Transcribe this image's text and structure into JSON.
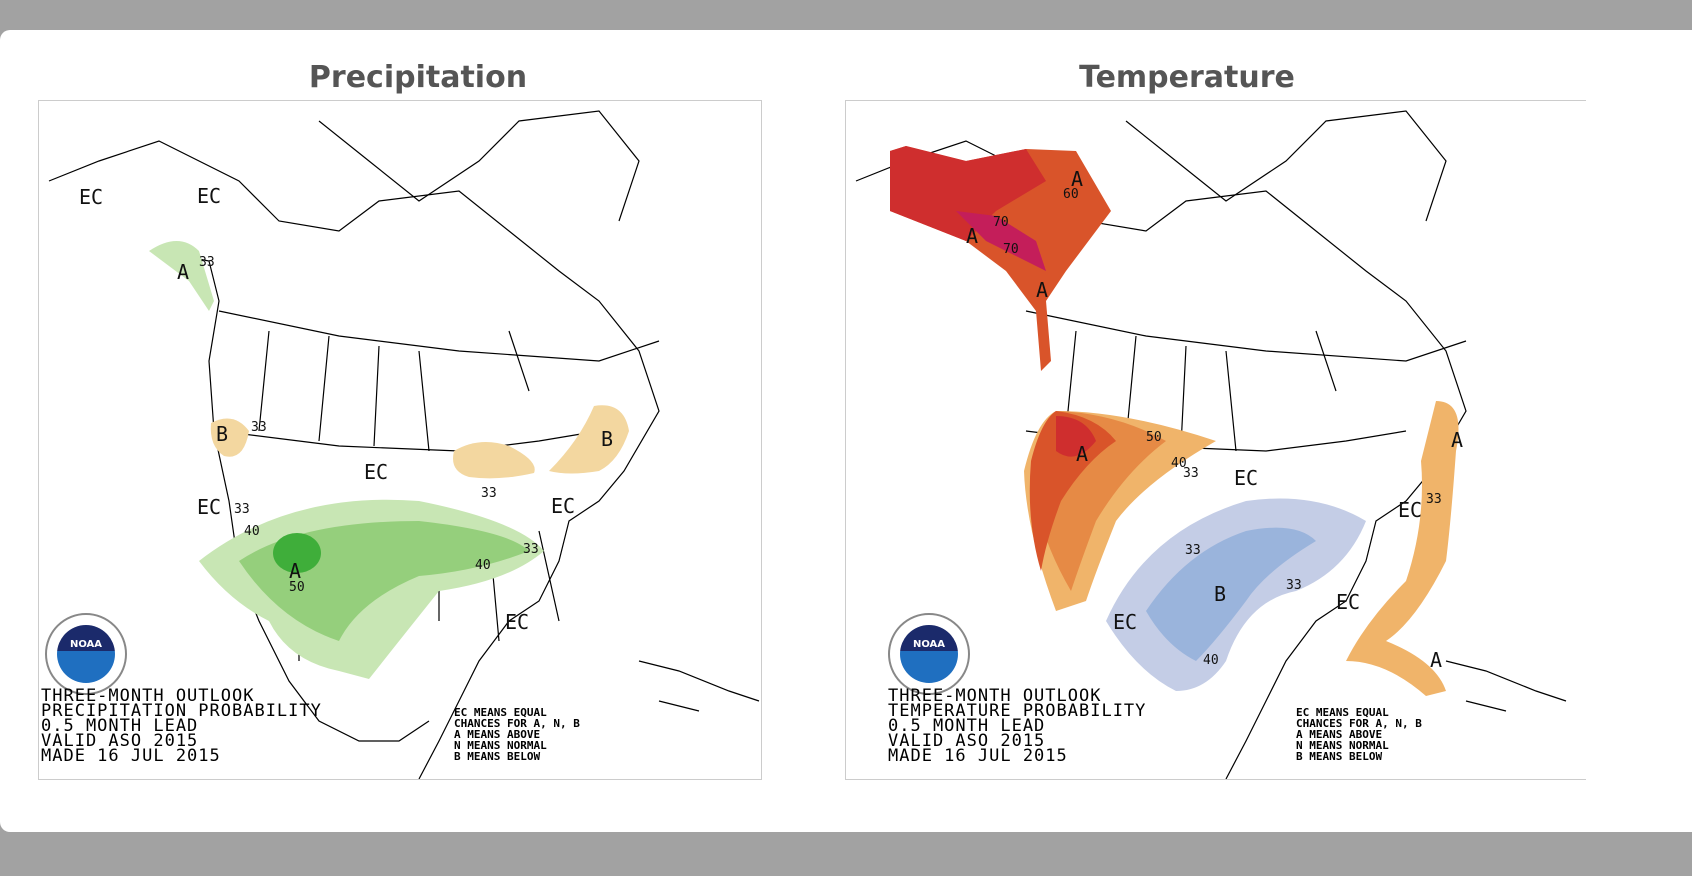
{
  "titles": {
    "precipitation": "Precipitation",
    "temperature": "Temperature"
  },
  "precipitation_map": {
    "caption": [
      "THREE-MONTH OUTLOOK",
      "PRECIPITATION PROBABILITY",
      "0.5 MONTH LEAD",
      "VALID ASO 2015",
      "MADE 16 JUL 2015"
    ],
    "legend": [
      "EC MEANS EQUAL",
      "CHANCES FOR A, N, B",
      "A MEANS ABOVE",
      "N MEANS NORMAL",
      "B MEANS BELOW"
    ],
    "logo_text": "NOAA",
    "colors": {
      "above_33": "#c8e6b4",
      "above_40": "#95cf7c",
      "above_50": "#3fae3a",
      "below_33": "#f3d7a0",
      "below_40": "#e8b865"
    },
    "labels": [
      "EC",
      "EC",
      "33",
      "A",
      "B",
      "33",
      "EC",
      "B",
      "33",
      "EC",
      "33",
      "40",
      "EC",
      "A",
      "50",
      "40",
      "33",
      "EC"
    ]
  },
  "temperature_map": {
    "caption": [
      "THREE-MONTH OUTLOOK",
      "TEMPERATURE PROBABILITY",
      "0.5 MONTH LEAD",
      "VALID ASO 2015",
      "MADE 16 JUL 2015"
    ],
    "legend": [
      "EC MEANS EQUAL",
      "CHANCES FOR A, N, B",
      "A MEANS ABOVE",
      "N MEANS NORMAL",
      "B MEANS BELOW"
    ],
    "logo_text": "NOAA",
    "colors": {
      "above_33": "#f0b46a",
      "above_40": "#e68a45",
      "above_50": "#d9542a",
      "above_60": "#cf2e2e",
      "above_70": "#c41e5a",
      "below_33": "#c4cde6",
      "below_40": "#9ab4dc"
    },
    "labels": [
      "A",
      "60",
      "70",
      "A",
      "70",
      "A",
      "A",
      "50",
      "40",
      "33",
      "EC",
      "33",
      "B",
      "33",
      "EC",
      "EC",
      "40",
      "A",
      "EC",
      "33",
      "A"
    ]
  }
}
